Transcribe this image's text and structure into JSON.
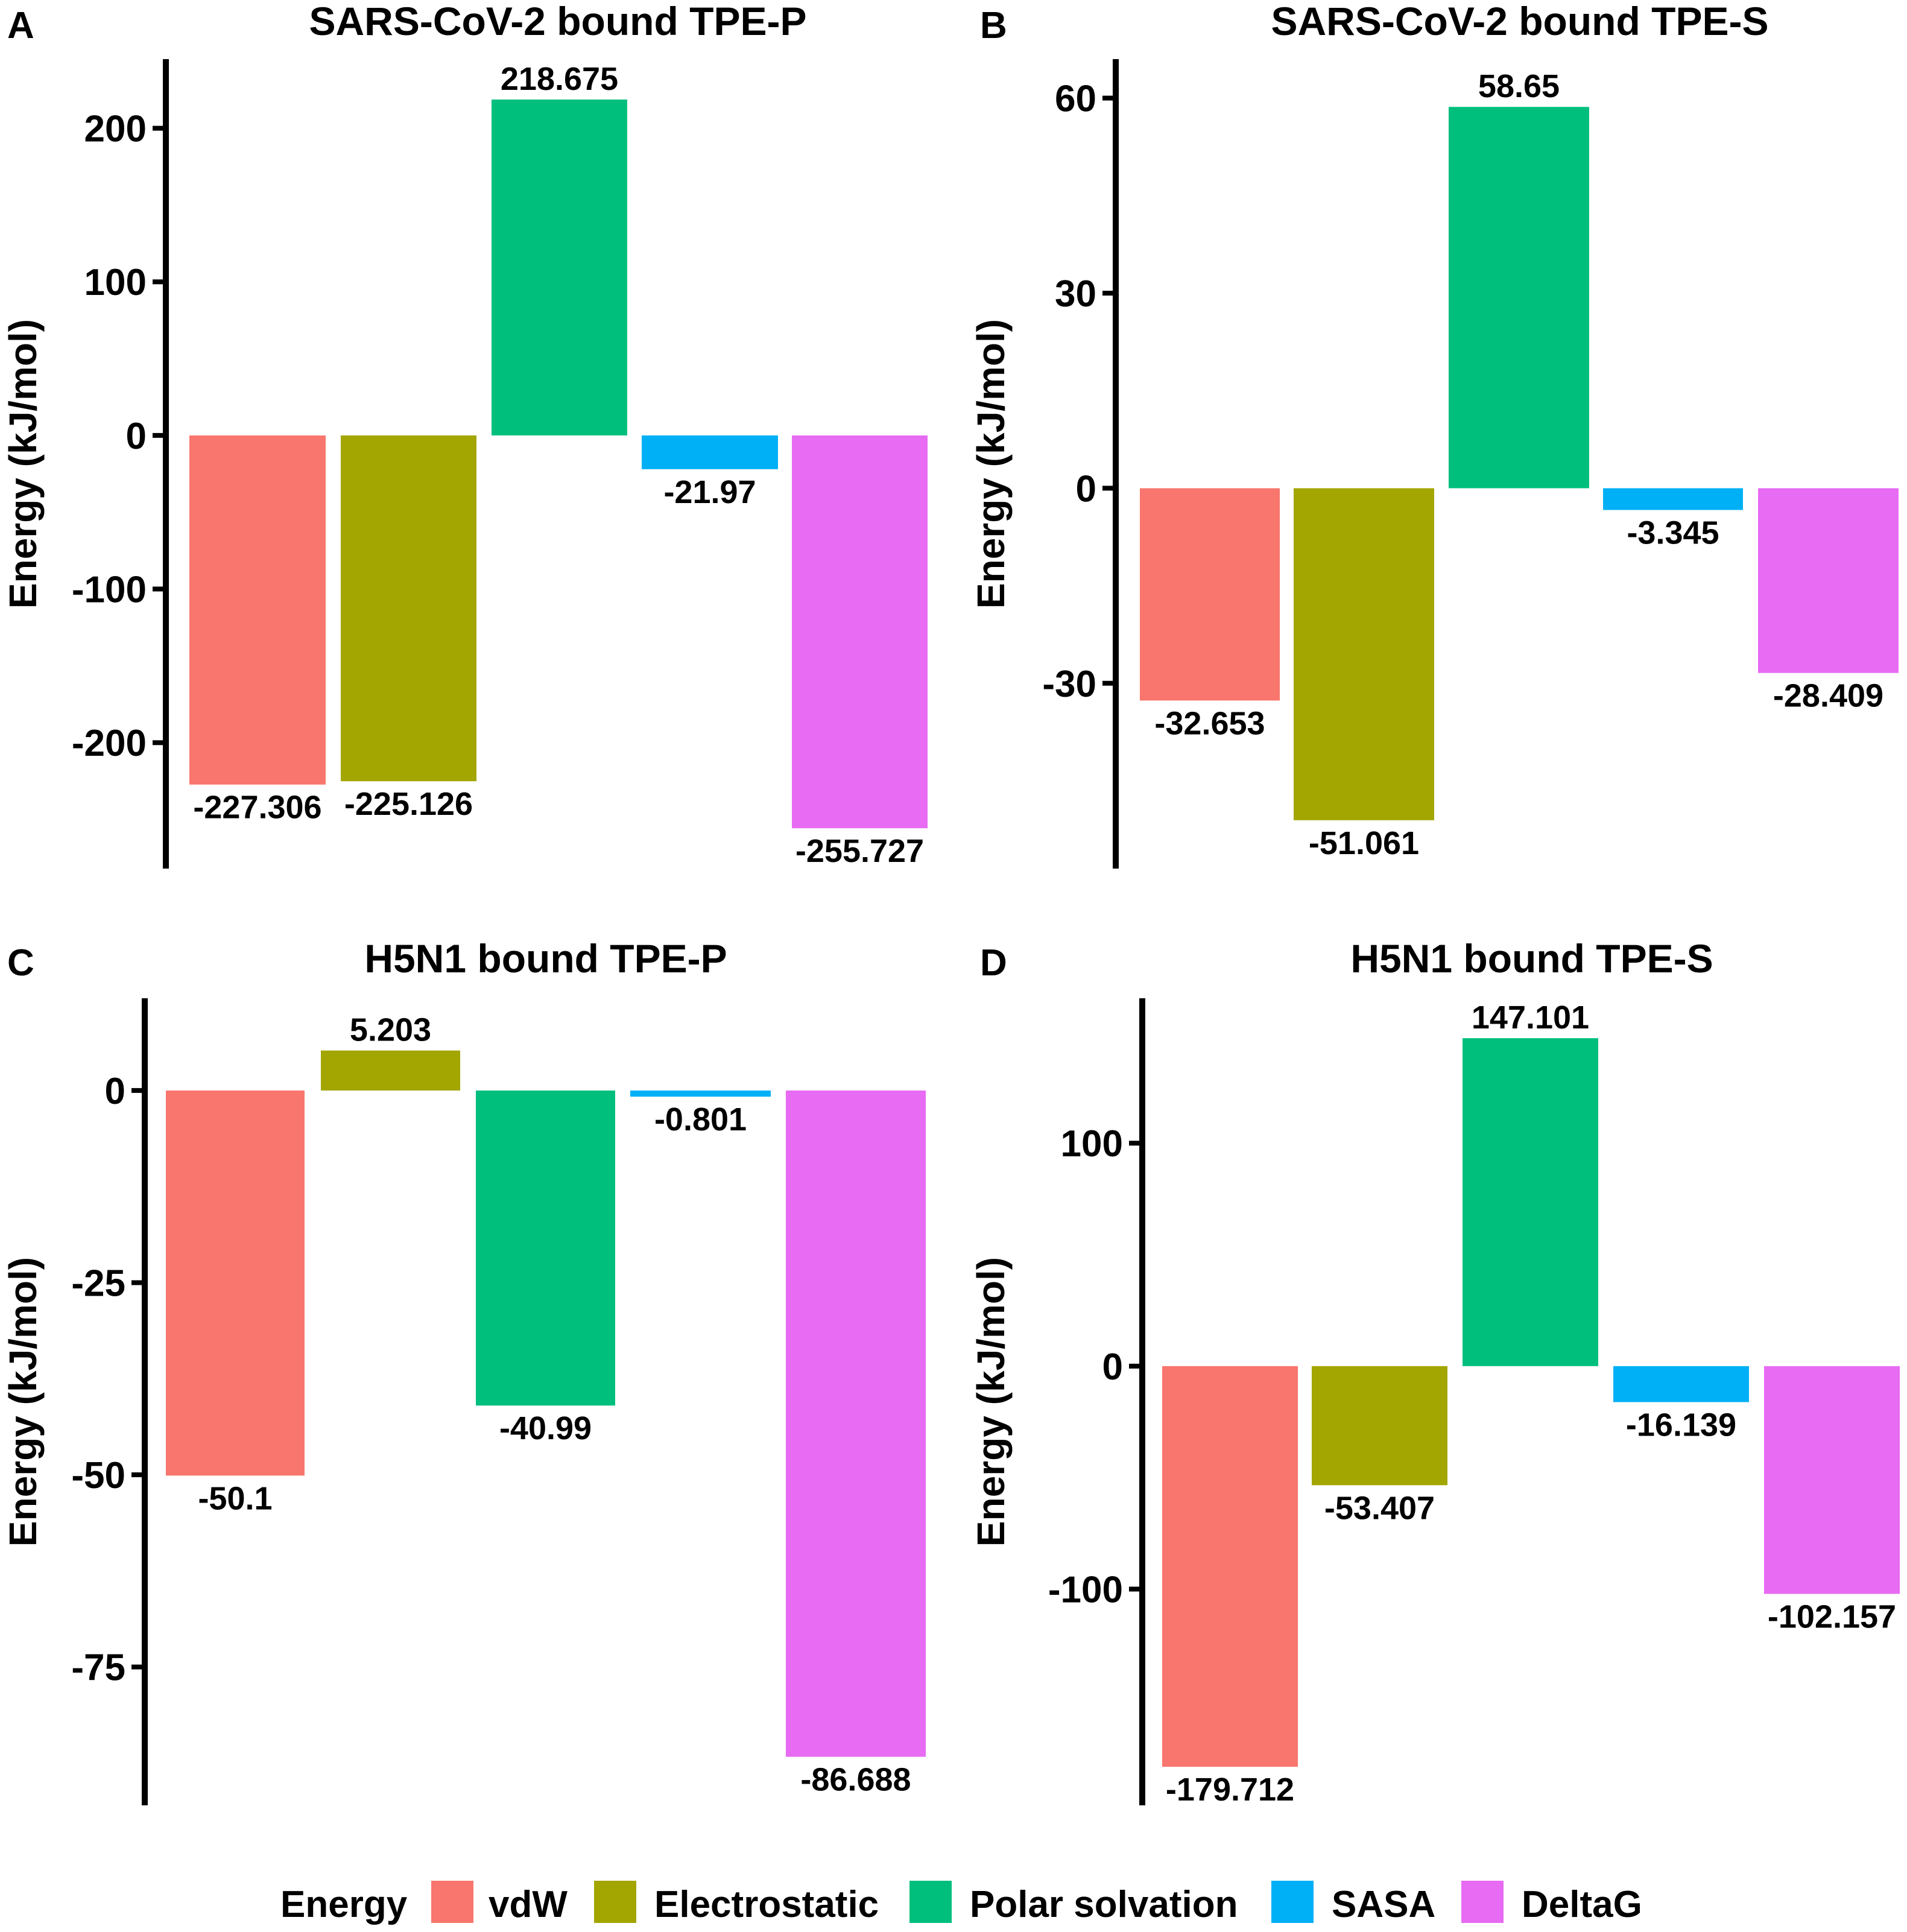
{
  "legend": {
    "title": "Energy",
    "items": [
      {
        "label": "vdW",
        "color": "#F8766D"
      },
      {
        "label": "Electrostatic",
        "color": "#A3A500"
      },
      {
        "label": "Polar solvation",
        "color": "#00BF7D"
      },
      {
        "label": "SASA",
        "color": "#00B0F6"
      },
      {
        "label": "DeltaG",
        "color": "#E76BF3"
      }
    ]
  },
  "chart_data": [
    {
      "panel": "A",
      "type": "bar",
      "title": "SARS-CoV-2 bound TPE-P",
      "ylabel": "Energy (kJ/mol)",
      "categories": [
        "vdW",
        "Electrostatic",
        "Polar solvation",
        "SASA",
        "DeltaG"
      ],
      "values": [
        -227.306,
        -225.126,
        218.675,
        -21.97,
        -255.727
      ],
      "value_labels": [
        "-227.306",
        "-225.126",
        "218.675",
        "-21.97",
        "-255.727"
      ],
      "ylim": [
        -282,
        245
      ],
      "yticks": [
        -200,
        -100,
        0,
        100,
        200
      ],
      "ytick_labels": [
        "-200",
        "-100",
        "0",
        "100",
        "200"
      ]
    },
    {
      "panel": "B",
      "type": "bar",
      "title": "SARS-CoV-2 bound TPE-S",
      "ylabel": "Energy (kJ/mol)",
      "categories": [
        "vdW",
        "Electrostatic",
        "Polar solvation",
        "SASA",
        "DeltaG"
      ],
      "values": [
        -32.653,
        -51.061,
        58.65,
        -3.345,
        -28.409
      ],
      "value_labels": [
        "-32.653",
        "-51.061",
        "58.65",
        "-3.345",
        "-28.409"
      ],
      "ylim": [
        -58.5,
        66
      ],
      "yticks": [
        -30,
        0,
        30,
        60
      ],
      "ytick_labels": [
        "-30",
        "0",
        "30",
        "60"
      ]
    },
    {
      "panel": "C",
      "type": "bar",
      "title": "H5N1 bound TPE-P",
      "ylabel": "Energy (kJ/mol)",
      "categories": [
        "vdW",
        "Electrostatic",
        "Polar solvation",
        "SASA",
        "DeltaG"
      ],
      "values": [
        -50.1,
        5.203,
        -40.99,
        -0.801,
        -86.688
      ],
      "value_labels": [
        "-50.1",
        "5.203",
        "-40.99",
        "-0.801",
        "-86.688"
      ],
      "ylim": [
        -93,
        12
      ],
      "yticks": [
        -75,
        -50,
        -25,
        0
      ],
      "ytick_labels": [
        "-75",
        "-50",
        "-25",
        "0"
      ]
    },
    {
      "panel": "D",
      "type": "bar",
      "title": "H5N1 bound TPE-S",
      "ylabel": "Energy (kJ/mol)",
      "categories": [
        "vdW",
        "Electrostatic",
        "Polar solvation",
        "SASA",
        "DeltaG"
      ],
      "values": [
        -179.712,
        -53.407,
        147.101,
        -16.139,
        -102.157
      ],
      "value_labels": [
        "-179.712",
        "-53.407",
        "147.101",
        "-16.139",
        "-102.157"
      ],
      "ylim": [
        -197,
        165
      ],
      "yticks": [
        -100,
        0,
        100
      ],
      "ytick_labels": [
        "-100",
        "0",
        "100"
      ]
    }
  ]
}
